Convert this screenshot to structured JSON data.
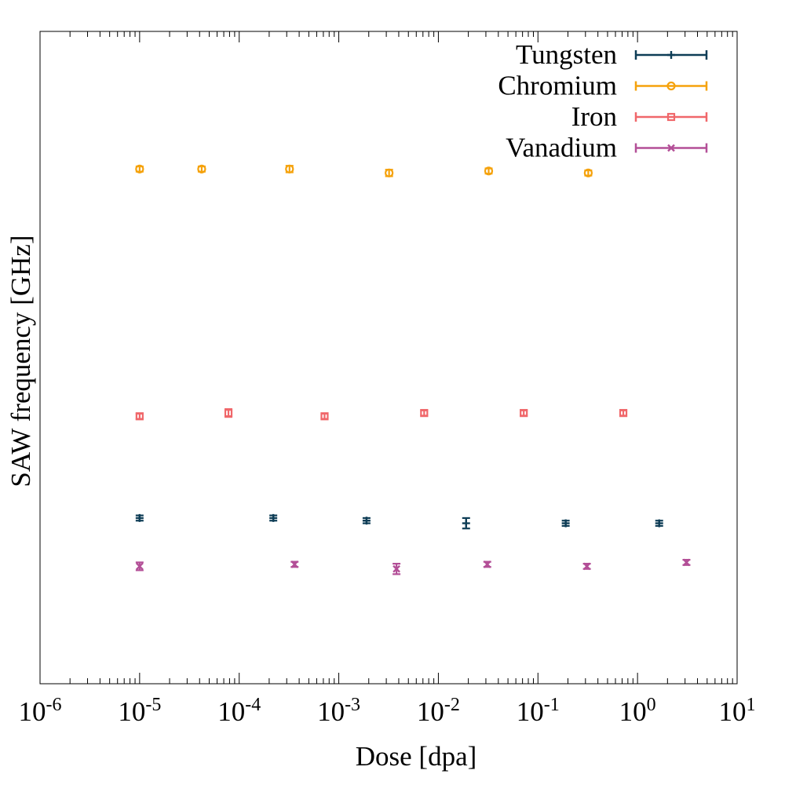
{
  "chart_data": {
    "type": "scatter",
    "title": "",
    "xlabel": "Dose [dpa]",
    "ylabel": "SAW frequency [GHz]",
    "x_scale": "log",
    "xlim": [
      1e-06,
      10
    ],
    "y_scale": "linear",
    "y_ticks_labeled": false,
    "grid": false,
    "legend": "top-right",
    "x_ticks": [
      {
        "exp": "-6",
        "value": 1e-06
      },
      {
        "exp": "-5",
        "value": 1e-05
      },
      {
        "exp": "-4",
        "value": 0.0001
      },
      {
        "exp": "-3",
        "value": 0.001
      },
      {
        "exp": "-2",
        "value": 0.01
      },
      {
        "exp": "-1",
        "value": 0.1
      },
      {
        "exp": "0",
        "value": 1
      },
      {
        "exp": "1",
        "value": 10
      }
    ],
    "series": [
      {
        "name": "Tungsten",
        "color": "#0e3d56",
        "marker": "plus",
        "points": [
          {
            "x": 1e-05,
            "y": 0.254,
            "err": 0.004
          },
          {
            "x": 0.00022,
            "y": 0.254,
            "err": 0.004
          },
          {
            "x": 0.0019,
            "y": 0.25,
            "err": 0.004
          },
          {
            "x": 0.019,
            "y": 0.246,
            "err": 0.008
          },
          {
            "x": 0.19,
            "y": 0.246,
            "err": 0.004
          },
          {
            "x": 1.65,
            "y": 0.246,
            "err": 0.004
          }
        ]
      },
      {
        "name": "Chromium",
        "color": "#f5a20c",
        "marker": "circle",
        "points": [
          {
            "x": 1e-05,
            "y": 0.789,
            "err": 0.004
          },
          {
            "x": 4.2e-05,
            "y": 0.789,
            "err": 0.004
          },
          {
            "x": 0.00032,
            "y": 0.789,
            "err": 0.005
          },
          {
            "x": 0.0032,
            "y": 0.783,
            "err": 0.005
          },
          {
            "x": 0.032,
            "y": 0.786,
            "err": 0.004
          },
          {
            "x": 0.32,
            "y": 0.783,
            "err": 0.004
          }
        ]
      },
      {
        "name": "Iron",
        "color": "#f0676a",
        "marker": "square",
        "points": [
          {
            "x": 1e-05,
            "y": 0.41,
            "err": 0.004
          },
          {
            "x": 7.8e-05,
            "y": 0.415,
            "err": 0.006
          },
          {
            "x": 0.00072,
            "y": 0.41,
            "err": 0.004
          },
          {
            "x": 0.0072,
            "y": 0.415,
            "err": 0.004
          },
          {
            "x": 0.072,
            "y": 0.415,
            "err": 0.004
          },
          {
            "x": 0.72,
            "y": 0.415,
            "err": 0.004
          }
        ]
      },
      {
        "name": "Vanadium",
        "color": "#b34f97",
        "marker": "cross",
        "points": [
          {
            "x": 1e-05,
            "y": 0.18,
            "err": 0.006
          },
          {
            "x": 0.00036,
            "y": 0.183,
            "err": 0.004
          },
          {
            "x": 0.0038,
            "y": 0.176,
            "err": 0.008
          },
          {
            "x": 0.031,
            "y": 0.183,
            "err": 0.004
          },
          {
            "x": 0.31,
            "y": 0.18,
            "err": 0.004
          },
          {
            "x": 3.1,
            "y": 0.186,
            "err": 0.004
          }
        ]
      }
    ]
  }
}
